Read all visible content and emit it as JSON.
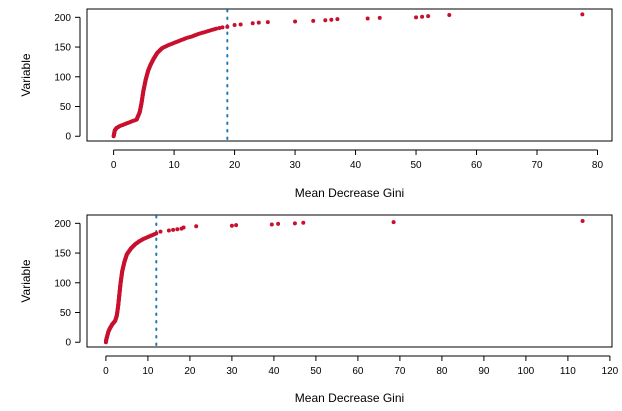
{
  "chart_data": [
    {
      "type": "scatter",
      "xlabel": "Mean Decrease Gini",
      "ylabel": "Variable",
      "xlim": [
        -4.4,
        82.4
      ],
      "ylim": [
        -8,
        214
      ],
      "x_ticks": [
        0,
        10,
        20,
        30,
        40,
        50,
        60,
        70,
        80
      ],
      "y_ticks": [
        0,
        50,
        100,
        150,
        200
      ],
      "x_tick_labels": [
        "0",
        "10",
        "20",
        "30",
        "40",
        "50",
        "60",
        "70",
        "80"
      ],
      "y_tick_labels": [
        "0",
        "50",
        "100",
        "150",
        "200"
      ],
      "threshold_x": 18.8,
      "point_color": "#c8102e",
      "line_color": "#1f77b4",
      "curve": [
        [
          0,
          0
        ],
        [
          0.1,
          5
        ],
        [
          0.2,
          10
        ],
        [
          0.5,
          14
        ],
        [
          1,
          17
        ],
        [
          2,
          21
        ],
        [
          3,
          25
        ],
        [
          3.8,
          28
        ],
        [
          4.3,
          40
        ],
        [
          4.6,
          55
        ],
        [
          4.9,
          75
        ],
        [
          5.3,
          95
        ],
        [
          5.7,
          110
        ],
        [
          6.1,
          120
        ],
        [
          6.6,
          130
        ],
        [
          7.2,
          140
        ],
        [
          8,
          148
        ],
        [
          9,
          153
        ],
        [
          10,
          157
        ],
        [
          11,
          161
        ],
        [
          12,
          165
        ],
        [
          13,
          168
        ],
        [
          14,
          172
        ],
        [
          15,
          175
        ],
        [
          16,
          178
        ],
        [
          17,
          181
        ],
        [
          18,
          183
        ],
        [
          18.8,
          184
        ]
      ],
      "outliers": [
        [
          20,
          187
        ],
        [
          21,
          188
        ],
        [
          23,
          190
        ],
        [
          24,
          191
        ],
        [
          25.5,
          192
        ],
        [
          30,
          193
        ],
        [
          33,
          194
        ],
        [
          35,
          195
        ],
        [
          36,
          196
        ],
        [
          37,
          197
        ],
        [
          42,
          198
        ],
        [
          44,
          199
        ],
        [
          50,
          200
        ],
        [
          51,
          201
        ],
        [
          52,
          202
        ],
        [
          55.5,
          204
        ],
        [
          77.5,
          205
        ]
      ]
    },
    {
      "type": "scatter",
      "xlabel": "Mean Decrease Gini",
      "ylabel": "Variable",
      "xlim": [
        -4.5,
        120.5
      ],
      "ylim": [
        -8,
        214
      ],
      "x_ticks": [
        0,
        10,
        20,
        30,
        40,
        50,
        60,
        70,
        80,
        90,
        100,
        110,
        120
      ],
      "y_ticks": [
        0,
        50,
        100,
        150,
        200
      ],
      "x_tick_labels": [
        "0",
        "10",
        "20",
        "30",
        "40",
        "50",
        "60",
        "70",
        "80",
        "90",
        "100",
        "110",
        "120"
      ],
      "y_tick_labels": [
        "0",
        "50",
        "100",
        "150",
        "200"
      ],
      "threshold_x": 12,
      "point_color": "#c8102e",
      "line_color": "#1f77b4",
      "curve": [
        [
          0,
          0
        ],
        [
          0.1,
          5
        ],
        [
          0.3,
          10
        ],
        [
          0.6,
          18
        ],
        [
          1,
          24
        ],
        [
          1.5,
          30
        ],
        [
          2.2,
          36
        ],
        [
          2.6,
          45
        ],
        [
          2.9,
          60
        ],
        [
          3.2,
          80
        ],
        [
          3.5,
          100
        ],
        [
          3.9,
          120
        ],
        [
          4.4,
          135
        ],
        [
          5,
          148
        ],
        [
          6,
          158
        ],
        [
          7,
          165
        ],
        [
          8,
          170
        ],
        [
          9,
          174
        ],
        [
          10,
          177
        ],
        [
          11,
          180
        ],
        [
          12,
          183
        ]
      ],
      "outliers": [
        [
          13,
          186
        ],
        [
          15,
          188
        ],
        [
          16,
          189
        ],
        [
          17,
          190
        ],
        [
          18,
          191
        ],
        [
          18.5,
          193
        ],
        [
          21.5,
          195
        ],
        [
          30,
          196
        ],
        [
          31,
          197
        ],
        [
          39.5,
          198
        ],
        [
          41,
          199
        ],
        [
          45,
          200
        ],
        [
          47,
          201
        ],
        [
          68.5,
          202
        ],
        [
          113.5,
          204
        ]
      ]
    }
  ]
}
